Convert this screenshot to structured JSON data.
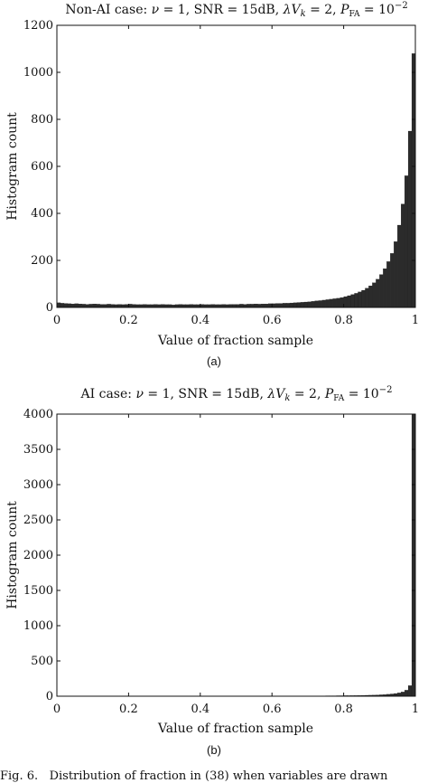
{
  "chart_data": [
    {
      "type": "bar",
      "title": "Non-AI case: ν = 1, SNR = 15dB, λV_k = 2, P_FA = 10^−2",
      "xlabel": "Value of fraction sample",
      "ylabel": "Histogram count",
      "xlim": [
        0,
        1
      ],
      "ylim": [
        0,
        1200
      ],
      "xticks": [
        "0",
        "0.2",
        "0.4",
        "0.6",
        "0.8",
        "1"
      ],
      "yticks": [
        "0",
        "200",
        "400",
        "600",
        "800",
        "1000",
        "1200"
      ],
      "sublabel": "(a)",
      "bin_width": 0.01,
      "values": [
        20,
        18,
        17,
        16,
        15,
        16,
        15,
        14,
        13,
        14,
        15,
        14,
        13,
        13,
        14,
        13,
        12,
        13,
        12,
        13,
        14,
        13,
        12,
        12,
        13,
        12,
        12,
        13,
        12,
        13,
        12,
        12,
        11,
        12,
        13,
        12,
        12,
        13,
        12,
        12,
        13,
        12,
        12,
        13,
        12,
        12,
        13,
        12,
        13,
        13,
        13,
        14,
        13,
        14,
        14,
        15,
        14,
        15,
        15,
        16,
        16,
        17,
        17,
        18,
        18,
        19,
        20,
        21,
        22,
        23,
        24,
        26,
        28,
        29,
        31,
        33,
        35,
        37,
        39,
        42,
        46,
        50,
        55,
        60,
        66,
        73,
        82,
        92,
        105,
        120,
        140,
        165,
        195,
        230,
        280,
        350,
        440,
        560,
        750,
        1080
      ]
    },
    {
      "type": "bar",
      "title": "AI case: ν = 1, SNR = 15dB, λV_k = 2, P_FA = 10^−2",
      "xlabel": "Value of fraction sample",
      "ylabel": "Histogram count",
      "xlim": [
        0,
        1
      ],
      "ylim": [
        0,
        4000
      ],
      "xticks": [
        "0",
        "0.2",
        "0.4",
        "0.6",
        "0.8",
        "1"
      ],
      "yticks": [
        "0",
        "500",
        "1000",
        "1500",
        "2000",
        "2500",
        "3000",
        "3500",
        "4000"
      ],
      "sublabel": "(b)",
      "bin_width": 0.01,
      "values": [
        4,
        3,
        3,
        3,
        3,
        3,
        2,
        2,
        3,
        3,
        2,
        2,
        3,
        2,
        2,
        2,
        3,
        2,
        2,
        2,
        2,
        3,
        2,
        2,
        2,
        2,
        2,
        2,
        3,
        2,
        2,
        2,
        2,
        2,
        2,
        2,
        2,
        3,
        2,
        2,
        2,
        2,
        2,
        2,
        2,
        2,
        3,
        2,
        2,
        2,
        2,
        2,
        2,
        2,
        3,
        2,
        2,
        2,
        2,
        3,
        3,
        3,
        3,
        3,
        3,
        3,
        3,
        4,
        4,
        4,
        4,
        4,
        5,
        5,
        5,
        6,
        6,
        6,
        7,
        7,
        8,
        8,
        9,
        10,
        11,
        12,
        13,
        14,
        16,
        18,
        20,
        23,
        27,
        32,
        38,
        47,
        60,
        85,
        150,
        4000
      ]
    }
  ],
  "caption": "Fig. 6.   Distribution of fraction in (38) when variables are drawn"
}
